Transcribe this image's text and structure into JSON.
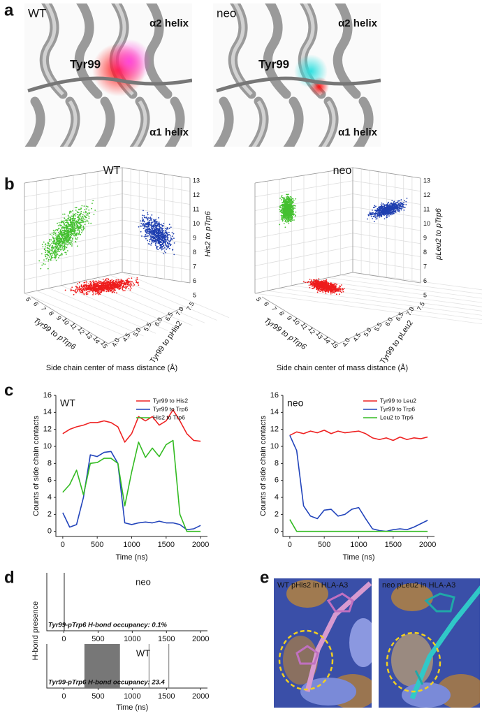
{
  "panel_labels": [
    "a",
    "b",
    "c",
    "d",
    "e"
  ],
  "panel_a": {
    "conditions": [
      "WT",
      "neo"
    ],
    "residue": "Tyr99",
    "helix_upper": "α2 helix",
    "helix_lower": "α1 helix"
  },
  "panel_b": {
    "xlabel": "Side chain center of mass distance (Å)",
    "plots": [
      {
        "title": "WT",
        "axis_front": "Tyr99 to pTrp6",
        "axis_depth": "Tyr99 to pHis2",
        "axis_vertical": "His2 to pTrp6"
      },
      {
        "title": "neo",
        "axis_front": "Tyr99 to pTrp6",
        "axis_depth": "Tyr99 to pLeu2",
        "axis_vertical": "pLeu2 to pTrp6"
      }
    ],
    "front_ticks": [
      5,
      6,
      7,
      8,
      9,
      10,
      11,
      12,
      13,
      14,
      15
    ],
    "depth_ticks": [
      "4.0",
      "4.5",
      "5.0",
      "5.5",
      "6.0",
      "6.5",
      "7.0",
      "7.5"
    ],
    "vertical_ticks": [
      5,
      6,
      7,
      8,
      9,
      10,
      11,
      12,
      13
    ]
  },
  "chart_data": [
    {
      "type": "line",
      "title": "WT",
      "ylabel": "Counts of side chain contacts",
      "xlabel": "Time (ns)",
      "x": [
        0,
        100,
        200,
        300,
        400,
        500,
        600,
        700,
        800,
        900,
        1000,
        1100,
        1200,
        1300,
        1400,
        1500,
        1600,
        1700,
        1800,
        1900,
        2000
      ],
      "xlim": [
        -100,
        2100
      ],
      "xticks": [
        0,
        500,
        1000,
        1500,
        2000
      ],
      "ylim": [
        -0.6,
        16
      ],
      "yticks": [
        0,
        2,
        4,
        6,
        8,
        10,
        12,
        14,
        16
      ],
      "legend": "upper right",
      "series": [
        {
          "name": "Tyr99 to His2",
          "color": "#ee2222",
          "values": [
            11.5,
            12,
            12.3,
            12.5,
            12.8,
            12.8,
            13,
            12.8,
            12.3,
            10.5,
            11.5,
            13.5,
            13,
            13.5,
            12.5,
            13,
            14.3,
            13,
            11.5,
            10.7,
            10.6
          ]
        },
        {
          "name": "Tyr99 to Trp6",
          "color": "#2244bb",
          "values": [
            2.2,
            0.5,
            0.8,
            4,
            9,
            8.8,
            9.3,
            9.4,
            8,
            1,
            0.8,
            1,
            1.1,
            1,
            1.2,
            1,
            1,
            0.8,
            0.2,
            0.3,
            0.7
          ]
        },
        {
          "name": "His2 to Trp6",
          "color": "#33bb22",
          "values": [
            4.6,
            5.5,
            7.2,
            4.3,
            8,
            8.1,
            8.6,
            8.6,
            8,
            3,
            7,
            10.5,
            8.7,
            9.8,
            8.8,
            10.2,
            10.7,
            2,
            0,
            0,
            0
          ]
        }
      ]
    },
    {
      "type": "line",
      "title": "neo",
      "ylabel": "Counts of side chain contacts",
      "xlabel": "Time (ns)",
      "x": [
        0,
        100,
        200,
        300,
        400,
        500,
        600,
        700,
        800,
        900,
        1000,
        1100,
        1200,
        1300,
        1400,
        1500,
        1600,
        1700,
        1800,
        1900,
        2000
      ],
      "xlim": [
        -100,
        2100
      ],
      "xticks": [
        0,
        500,
        1000,
        1500,
        2000
      ],
      "ylim": [
        -0.6,
        16
      ],
      "yticks": [
        0,
        2,
        4,
        6,
        8,
        10,
        12,
        14,
        16
      ],
      "legend": "upper right",
      "series": [
        {
          "name": "Tyr99 to Leu2",
          "color": "#ee2222",
          "values": [
            11.3,
            11.7,
            11.5,
            11.8,
            11.6,
            11.9,
            11.5,
            11.8,
            11.6,
            11.7,
            11.8,
            11.5,
            11,
            10.8,
            11,
            10.7,
            11.1,
            10.8,
            11,
            10.9,
            11.1
          ]
        },
        {
          "name": "Tyr99 to Trp6",
          "color": "#2244bb",
          "values": [
            11.3,
            9.5,
            3,
            1.8,
            1.5,
            2.5,
            2.6,
            1.8,
            2,
            2.6,
            2.8,
            1.5,
            0.3,
            0.1,
            0,
            0.2,
            0.3,
            0.2,
            0.5,
            0.9,
            1.3
          ]
        },
        {
          "name": "Leu2 to Trp6",
          "color": "#33bb22",
          "values": [
            1.4,
            0,
            0,
            0,
            0,
            0,
            0,
            0,
            0,
            0,
            0,
            0,
            0,
            0,
            0,
            0,
            0,
            0,
            0,
            0,
            0
          ]
        }
      ]
    },
    {
      "type": "occupancy",
      "title": "neo",
      "ylabel": "H-bond presence",
      "annotation": "Tyr99-pTrp6 H-bond occupancy: 0.1%",
      "xlim": [
        -250,
        2100
      ],
      "xticks": [
        0,
        500,
        1000,
        1500,
        2000
      ],
      "color": "#222222",
      "intervals": [
        [
          0,
          8
        ]
      ]
    },
    {
      "type": "occupancy",
      "title": "WT",
      "xlabel": "Time (ns)",
      "annotation": "Tyr99-pTrp6 H-bond occupancy: 23.4",
      "xlim": [
        -250,
        2100
      ],
      "xticks": [
        0,
        500,
        1000,
        1500,
        2000
      ],
      "color": "#777777",
      "intervals": [
        [
          300,
          820
        ],
        [
          1240,
          1248
        ],
        [
          1530,
          1538
        ]
      ]
    }
  ],
  "panel_e": {
    "captions": [
      "WT pHis2 in HLA-A3",
      "neo pLeu2 in HLA-A3"
    ]
  }
}
